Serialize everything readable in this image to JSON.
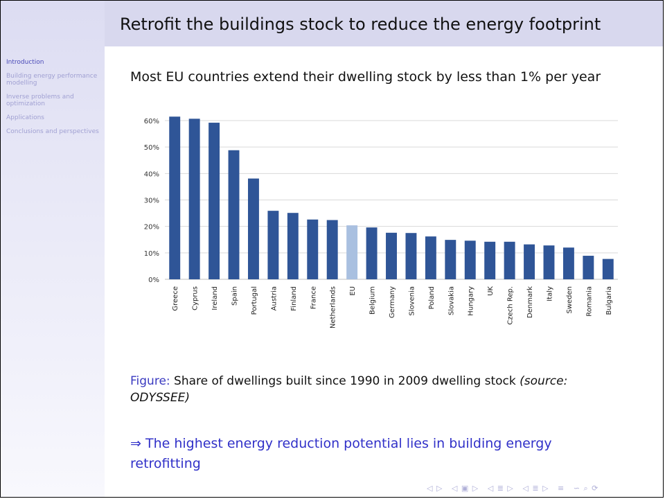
{
  "slide": {
    "title": "Retrofit the buildings stock to reduce the energy footprint",
    "subtitle": "Most EU countries extend their dwelling stock by less than 1% per year",
    "caption_label": "Figure:",
    "caption_text": "Share of dwellings built since 1990 in 2009 dwelling stock",
    "caption_source": "(source: ODYSSEE)",
    "conclusion": "⇒ The highest energy reduction potential lies in building energy retrofitting"
  },
  "sidebar": {
    "items": [
      {
        "label": "Introduction"
      },
      {
        "label": "Building energy performance modelling"
      },
      {
        "label": "Inverse problems and optimization"
      },
      {
        "label": "Applications"
      },
      {
        "label": "Conclusions and perspectives"
      }
    ]
  },
  "nav": {
    "icons": [
      "◁ ▷",
      "◁ ▣ ▷",
      "◁ ≣ ▷",
      "◁ ≣ ▷",
      "≡",
      "∽ ⌕ ⟳"
    ]
  },
  "colors": {
    "bar": "#2f5597",
    "highlight_bar": "#a9c0e0",
    "grid": "#d9d9d9",
    "accent": "#3030c8"
  },
  "chart_data": {
    "type": "bar",
    "title": "",
    "xlabel": "",
    "ylabel": "",
    "ylim": [
      0,
      0.6
    ],
    "y_tick_values": [
      0,
      0.1,
      0.2,
      0.3,
      0.4,
      0.5,
      0.6
    ],
    "y_tick_labels": [
      "0%",
      "10%",
      "20%",
      "30%",
      "40%",
      "50%",
      "60%"
    ],
    "grid": true,
    "highlight_category": "EU",
    "categories": [
      "Greece",
      "Cyprus",
      "Ireland",
      "Spain",
      "Portugal",
      "Austria",
      "Finland",
      "France",
      "Netherlands",
      "EU",
      "Belgium",
      "Germany",
      "Slovenia",
      "Poland",
      "Slovakia",
      "Hungary",
      "UK",
      "Czech Rep.",
      "Denmark",
      "Italy",
      "Sweden",
      "Romania",
      "Bulgaria"
    ],
    "values": [
      0.615,
      0.607,
      0.592,
      0.488,
      0.381,
      0.259,
      0.251,
      0.226,
      0.224,
      0.204,
      0.196,
      0.176,
      0.175,
      0.162,
      0.149,
      0.146,
      0.142,
      0.142,
      0.132,
      0.128,
      0.12,
      0.089,
      0.077
    ]
  }
}
